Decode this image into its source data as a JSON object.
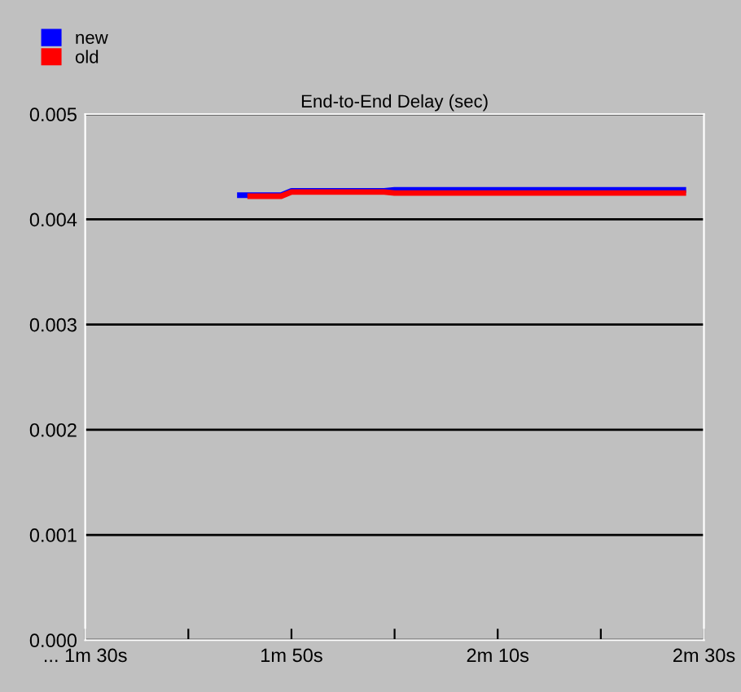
{
  "chart_data": {
    "type": "line",
    "title": "End-to-End Delay (sec)",
    "categories": [
      "... 1m 30s",
      null,
      null,
      null,
      null,
      null,
      null,
      null,
      null,
      null,
      null,
      null,
      null,
      null,
      null,
      null,
      null,
      null,
      null,
      null,
      "1m 50s",
      null,
      null,
      null,
      null,
      null,
      null,
      null,
      null,
      null,
      null,
      null,
      null,
      null,
      null,
      null,
      null,
      null,
      null,
      null,
      "2m 10s",
      null,
      null,
      null,
      null,
      null,
      null,
      null,
      null,
      null,
      null,
      null,
      null,
      null,
      null,
      null,
      null,
      null,
      null,
      null,
      "2m 30s"
    ],
    "series": [
      {
        "name": "new",
        "color": "#0000ff",
        "values": [
          null,
          null,
          null,
          null,
          null,
          null,
          null,
          null,
          null,
          null,
          null,
          null,
          null,
          null,
          null,
          0.00423,
          0.00423,
          0.00423,
          0.00423,
          0.00423,
          0.00427,
          0.00427,
          0.00427,
          0.00427,
          0.00427,
          0.00427,
          0.00427,
          0.00427,
          0.00427,
          0.00427,
          0.00428,
          0.00428,
          0.00428,
          0.00428,
          0.00428,
          0.00428,
          0.00428,
          0.00428,
          0.00428,
          0.00428,
          0.00428,
          0.00428,
          0.00428,
          0.00428,
          0.00428,
          0.00428,
          0.00428,
          0.00428,
          0.00428,
          0.00428,
          0.00428,
          0.00428,
          0.00428,
          0.00428,
          0.00428,
          0.00428,
          0.00428,
          0.00428,
          0.00428,
          null,
          null
        ]
      },
      {
        "name": "old",
        "color": "#ff0000",
        "values": [
          null,
          null,
          null,
          null,
          null,
          null,
          null,
          null,
          null,
          null,
          null,
          null,
          null,
          null,
          null,
          null,
          0.00422,
          0.00422,
          0.00422,
          0.00422,
          0.00426,
          0.00426,
          0.00426,
          0.00426,
          0.00426,
          0.00426,
          0.00426,
          0.00426,
          0.00426,
          0.00426,
          0.00425,
          0.00425,
          0.00425,
          0.00425,
          0.00425,
          0.00425,
          0.00425,
          0.00425,
          0.00425,
          0.00425,
          0.00425,
          0.00425,
          0.00425,
          0.00425,
          0.00425,
          0.00425,
          0.00425,
          0.00425,
          0.00425,
          0.00425,
          0.00425,
          0.00425,
          0.00425,
          0.00425,
          0.00425,
          0.00425,
          0.00425,
          0.00425,
          0.00425,
          null,
          null
        ]
      }
    ],
    "ylim": [
      0,
      0.005
    ],
    "yticks": [
      {
        "value": 0,
        "label": "0.000"
      },
      {
        "value": 0.001,
        "label": "0.001"
      },
      {
        "value": 0.002,
        "label": "0.002"
      },
      {
        "value": 0.003,
        "label": "0.003"
      },
      {
        "value": 0.004,
        "label": "0.004"
      },
      {
        "value": 0.005,
        "label": "0.005"
      }
    ],
    "grid": "y",
    "legend": "top left"
  }
}
